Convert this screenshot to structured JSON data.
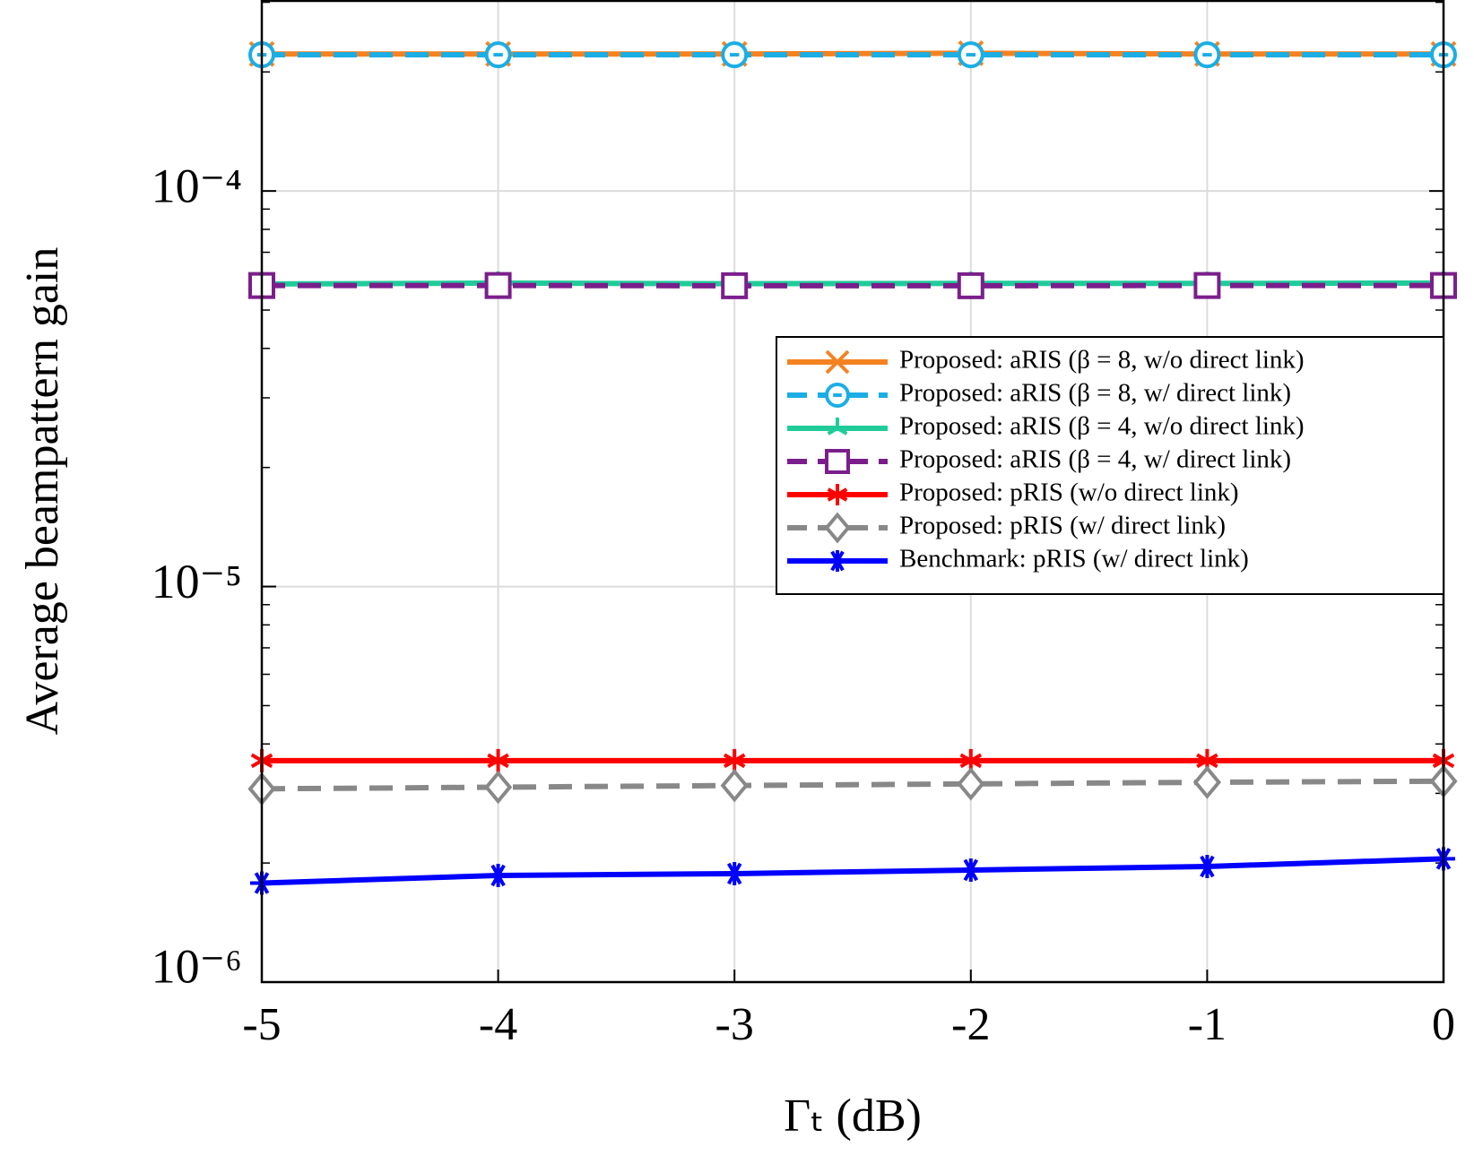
{
  "chart_data": {
    "type": "line",
    "xlabel": "Γₜ (dB)",
    "ylabel": "Average beampattern gain",
    "x": [
      -5,
      -4,
      -3,
      -2,
      -1,
      0
    ],
    "xlim": [
      -5,
      0
    ],
    "xticks": [
      -5,
      -4,
      -3,
      -2,
      -1,
      0
    ],
    "ylim": [
      1e-06,
      0.000304
    ],
    "log_y": true,
    "yticks": [
      {
        "value": 1e-06,
        "label": "10⁻⁶"
      },
      {
        "value": 1e-05,
        "label": "10⁻⁵"
      },
      {
        "value": 0.0001,
        "label": "10⁻⁴"
      }
    ],
    "grid": true,
    "legend": "center right",
    "series": [
      {
        "name": "Proposed: aRIS (β = 8, w/o direct link)",
        "color": "#f58220",
        "style": "solid",
        "marker": "x",
        "values": [
          0.000222,
          0.000222,
          0.000222,
          0.000223,
          0.000222,
          0.000222
        ]
      },
      {
        "name": "Proposed: aRIS (β = 8, w/ direct link)",
        "color": "#1aaee5",
        "style": "dashed",
        "marker": "o",
        "values": [
          0.000221,
          0.000221,
          0.000221,
          0.000221,
          0.000221,
          0.000221
        ]
      },
      {
        "name": "Proposed: aRIS (β = 4, w/o direct link)",
        "color": "#1fcc99",
        "style": "solid",
        "marker": "tri",
        "values": [
          5.82e-05,
          5.85e-05,
          5.83e-05,
          5.84e-05,
          5.84e-05,
          5.85e-05
        ]
      },
      {
        "name": "Proposed: aRIS (β = 4, w/ direct link)",
        "color": "#7b1e8c",
        "style": "dashed",
        "marker": "s",
        "values": [
          5.77e-05,
          5.77e-05,
          5.76e-05,
          5.76e-05,
          5.77e-05,
          5.77e-05
        ]
      },
      {
        "name": "Proposed: pRIS (w/o direct link)",
        "color": "#ff0000",
        "style": "solid",
        "marker": "star6",
        "values": [
          3.63e-06,
          3.63e-06,
          3.63e-06,
          3.63e-06,
          3.63e-06,
          3.63e-06
        ]
      },
      {
        "name": "Proposed: pRIS (w/ direct link)",
        "color": "#888888",
        "style": "dashed",
        "marker": "d",
        "values": [
          3.08e-06,
          3.11e-06,
          3.14e-06,
          3.17e-06,
          3.2e-06,
          3.22e-06
        ]
      },
      {
        "name": "Benchmark: pRIS (w/ direct link)",
        "color": "#0000ff",
        "style": "solid",
        "marker": "asterisk",
        "values": [
          1.78e-06,
          1.86e-06,
          1.88e-06,
          1.92e-06,
          1.96e-06,
          2.05e-06
        ]
      }
    ]
  }
}
